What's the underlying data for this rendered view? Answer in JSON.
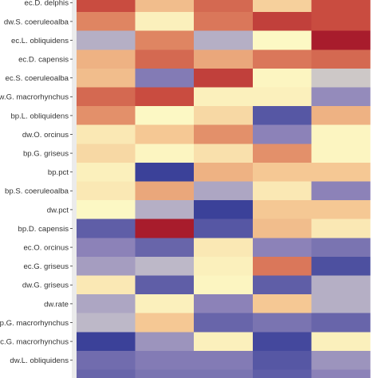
{
  "chart_data": {
    "type": "heatmap",
    "title": "",
    "xlabel": "",
    "ylabel": "",
    "columns": [
      "",
      "",
      "",
      "",
      ""
    ],
    "rows": [
      "ec.D. delphis",
      "dw.S. coeruleoalba",
      "ec.L. obliquidens",
      "ec.D. capensis",
      "ec.S. coeruleoalba",
      "dw.G. macrorhynchus",
      "bp.L. obliquidens",
      "dw.O. orcinus",
      "bp.G. griseus",
      "bp.pct",
      "bp.S. coeruleoalba",
      "dw.pct",
      "bp.D. capensis",
      "ec.O. orcinus",
      "ec.G. griseus",
      "dw.G. griseus",
      "dw.rate",
      "bp.G. macrorhynchus",
      "ec.G. macrorhynchus",
      "dw.L. obliquidens",
      ""
    ],
    "colorscale": {
      "stops": [
        {
          "v": -1.0,
          "color": "#323a96"
        },
        {
          "v": -0.5,
          "color": "#8c82b8"
        },
        {
          "v": -0.2,
          "color": "#bdb8c8"
        },
        {
          "v": 0.0,
          "color": "#fcf8c4"
        },
        {
          "v": 0.3,
          "color": "#f5c894"
        },
        {
          "v": 0.6,
          "color": "#df8562"
        },
        {
          "v": 0.8,
          "color": "#c94c40"
        },
        {
          "v": 1.0,
          "color": "#a81c2c"
        }
      ]
    },
    "values": [
      [
        0.8,
        0.35,
        0.7,
        0.25,
        0.8
      ],
      [
        0.6,
        0.05,
        0.65,
        0.85,
        0.8
      ],
      [
        -0.25,
        0.6,
        -0.25,
        0.0,
        1.0
      ],
      [
        0.4,
        0.7,
        0.45,
        0.65,
        0.7
      ],
      [
        0.35,
        -0.55,
        0.85,
        0.02,
        -0.15
      ],
      [
        0.7,
        0.8,
        0.05,
        0.05,
        -0.45
      ],
      [
        0.55,
        0.0,
        0.2,
        -0.8,
        0.4
      ],
      [
        0.1,
        0.3,
        0.55,
        -0.5,
        0.02
      ],
      [
        0.2,
        0.02,
        0.15,
        0.55,
        0.02
      ],
      [
        0.05,
        -0.95,
        0.4,
        0.3,
        0.3
      ],
      [
        0.1,
        0.45,
        -0.3,
        0.1,
        -0.5
      ],
      [
        0.0,
        -0.25,
        -0.95,
        0.3,
        0.3
      ],
      [
        -0.75,
        1.0,
        -0.8,
        0.35,
        0.1
      ],
      [
        -0.5,
        -0.7,
        0.1,
        -0.5,
        -0.6
      ],
      [
        -0.35,
        -0.2,
        0.05,
        0.65,
        -0.85
      ],
      [
        0.1,
        -0.75,
        0.02,
        -0.75,
        -0.25
      ],
      [
        -0.3,
        0.05,
        -0.5,
        0.3,
        -0.25
      ],
      [
        -0.2,
        0.3,
        -0.7,
        -0.6,
        -0.7
      ],
      [
        -0.95,
        -0.4,
        0.05,
        -0.9,
        0.05
      ],
      [
        -0.65,
        -0.55,
        -0.55,
        -0.8,
        -0.4
      ],
      [
        -0.7,
        -0.6,
        -0.6,
        -0.75,
        -0.5
      ]
    ]
  }
}
